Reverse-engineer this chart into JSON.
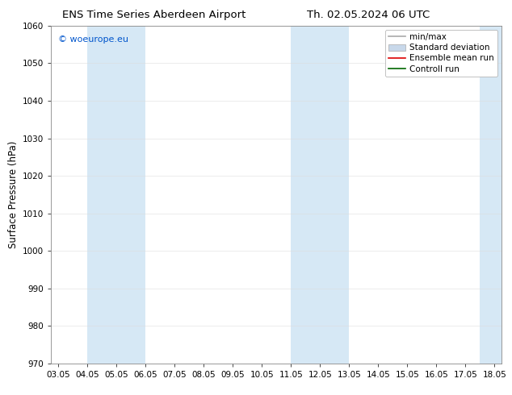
{
  "title_left": "ENS Time Series Aberdeen Airport",
  "title_right": "Th. 02.05.2024 06 UTC",
  "ylabel": "Surface Pressure (hPa)",
  "xlabel": "",
  "ylim": [
    970,
    1060
  ],
  "yticks": [
    970,
    980,
    990,
    1000,
    1010,
    1020,
    1030,
    1040,
    1050,
    1060
  ],
  "xlim_start": 2.8,
  "xlim_end": 18.3,
  "xtick_labels": [
    "03.05",
    "04.05",
    "05.05",
    "06.05",
    "07.05",
    "08.05",
    "09.05",
    "10.05",
    "11.05",
    "12.05",
    "13.05",
    "14.05",
    "15.05",
    "16.05",
    "17.05",
    "18.05"
  ],
  "xtick_positions": [
    3.05,
    4.05,
    5.05,
    6.05,
    7.05,
    8.05,
    9.05,
    10.05,
    11.05,
    12.05,
    13.05,
    14.05,
    15.05,
    16.05,
    17.05,
    18.05
  ],
  "shaded_bands": [
    {
      "x_start": 4.05,
      "x_end": 6.05
    },
    {
      "x_start": 11.05,
      "x_end": 13.05
    },
    {
      "x_start": 17.55,
      "x_end": 18.3
    }
  ],
  "shade_color": "#d6e8f5",
  "background_color": "#ffffff",
  "watermark_text": "© woeurope.eu",
  "watermark_color": "#0055cc",
  "legend_items": [
    {
      "label": "min/max",
      "color": "#aaaaaa",
      "lw": 1.2
    },
    {
      "label": "Standard deviation",
      "color": "#c8d8ea",
      "lw": 5
    },
    {
      "label": "Ensemble mean run",
      "color": "#dd0000",
      "lw": 1.2
    },
    {
      "label": "Controll run",
      "color": "#006600",
      "lw": 1.2
    }
  ],
  "title_fontsize": 9.5,
  "tick_fontsize": 7.5,
  "ylabel_fontsize": 8.5,
  "watermark_fontsize": 8,
  "legend_fontsize": 7.5
}
